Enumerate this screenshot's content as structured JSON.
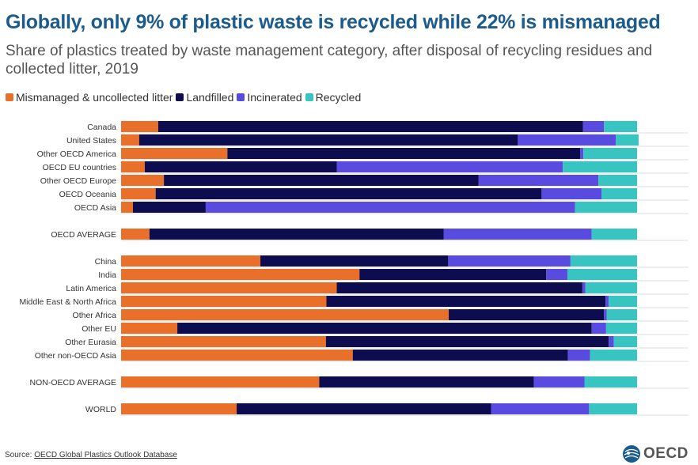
{
  "title": "Globally, only 9% of plastic waste is recycled while 22% is mismanaged",
  "subtitle": "Share of plastics treated by waste management category, after disposal of recycling residues and collected litter, 2019",
  "source_label": "Source:",
  "source_link": "OECD Global Plastics Outlook Database",
  "logo_text": "OECD",
  "colors": {
    "mismanaged": "#e8702a",
    "landfilled": "#0c0c4e",
    "incinerated": "#5a4be0",
    "recycled": "#38c5c1"
  },
  "chart_data": {
    "type": "bar",
    "orientation": "horizontal",
    "stacked": true,
    "xlim": [
      0,
      100
    ],
    "unit": "%",
    "legend_position": "top-left",
    "grid": false,
    "series": [
      {
        "name": "Mismanaged & uncollected litter",
        "key": "mismanaged"
      },
      {
        "name": "Landfilled",
        "key": "landfilled"
      },
      {
        "name": "Incinerated",
        "key": "incinerated"
      },
      {
        "name": "Recycled",
        "key": "recycled"
      }
    ],
    "groups": [
      {
        "rows": [
          {
            "label": "Canada",
            "values": [
              7.2,
              82.3,
              4.1,
              6.4
            ]
          },
          {
            "label": "United States",
            "values": [
              3.5,
              73.4,
              19.0,
              4.4
            ]
          },
          {
            "label": "Other OECD America",
            "values": [
              20.6,
              68.4,
              0.6,
              10.4
            ]
          },
          {
            "label": "OECD EU countries",
            "values": [
              4.6,
              37.2,
              43.8,
              14.4
            ]
          },
          {
            "label": "Other OECD Europe",
            "values": [
              8.3,
              61.0,
              23.2,
              7.5
            ]
          },
          {
            "label": "OECD Oceania",
            "values": [
              6.7,
              74.8,
              11.6,
              6.9
            ]
          },
          {
            "label": "OECD Asia",
            "values": [
              2.3,
              14.1,
              71.6,
              12.0
            ]
          }
        ]
      },
      {
        "rows": [
          {
            "label": "OECD AVERAGE",
            "values": [
              5.5,
              57.0,
              28.7,
              8.8
            ]
          }
        ]
      },
      {
        "rows": [
          {
            "label": "China",
            "values": [
              27.0,
              36.4,
              23.7,
              12.9
            ]
          },
          {
            "label": "India",
            "values": [
              46.2,
              36.2,
              4.1,
              13.5
            ]
          },
          {
            "label": "Latin America",
            "values": [
              41.8,
              47.6,
              0.6,
              10.0
            ]
          },
          {
            "label": "Middle East & North Africa",
            "values": [
              39.8,
              54.1,
              0.6,
              5.5
            ]
          },
          {
            "label": "Other Africa",
            "values": [
              63.5,
              30.1,
              0.5,
              5.9
            ]
          },
          {
            "label": "Other EU",
            "values": [
              10.9,
              80.3,
              2.8,
              6.0
            ]
          },
          {
            "label": "Other Eurasia",
            "values": [
              39.7,
              54.8,
              1.0,
              4.5
            ]
          },
          {
            "label": "Other non-OECD Asia",
            "values": [
              44.9,
              41.7,
              4.3,
              9.1
            ]
          }
        ]
      },
      {
        "rows": [
          {
            "label": "NON-OECD AVERAGE",
            "values": [
              38.4,
              41.6,
              9.8,
              10.2
            ]
          }
        ]
      },
      {
        "rows": [
          {
            "label": "WORLD",
            "values": [
              22.4,
              49.3,
              19.0,
              9.3
            ]
          }
        ]
      }
    ]
  }
}
